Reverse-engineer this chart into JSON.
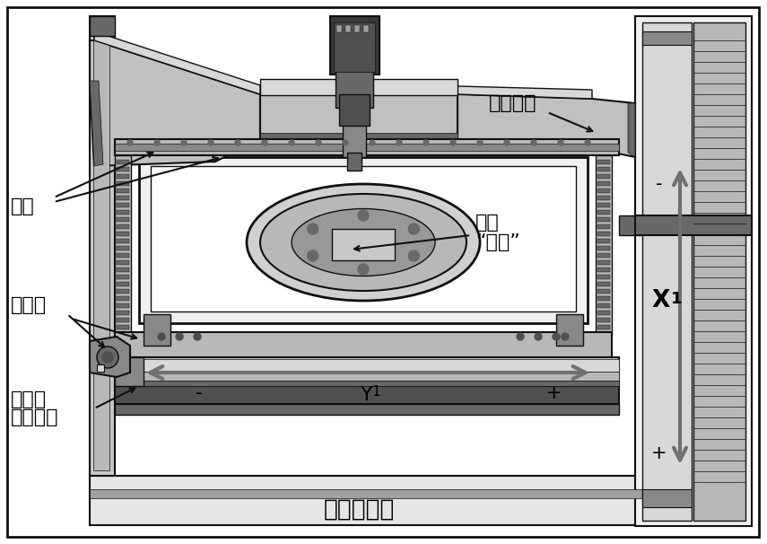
{
  "fig_width": 8.55,
  "fig_height": 6.06,
  "dpi": 100,
  "bg_color": "#ffffff",
  "labels": {
    "guang_xue_jing_ti": "光学晶体",
    "xiu_fu_line1": "修复",
    "xiu_fu_line2": "“窗口”",
    "zhi_jia": "支架",
    "qi_fu_dian": "气浮垫",
    "jing_ti_kuang_line1": "晶体框",
    "jing_ti_kuang_line2": "（夹具）",
    "da_li_shi_ping_tai": "大理石平台",
    "Y1": "Y",
    "Y1_sub": "1",
    "X1": "X",
    "X1_sub": "1",
    "minus_y": "-",
    "plus_y": "+",
    "minus_x": "-",
    "plus_x": "+"
  }
}
